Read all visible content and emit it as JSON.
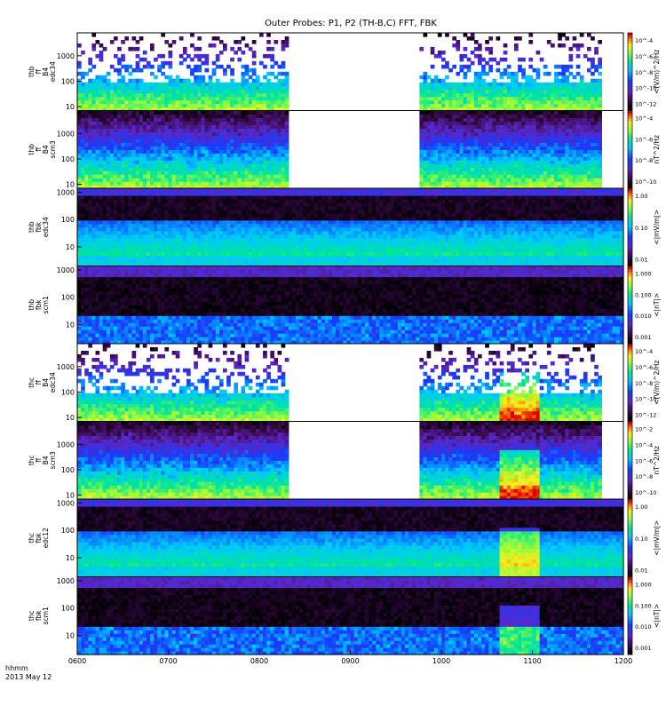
{
  "chart_data": {
    "type": "heatmap",
    "title": "Outer Probes: P1, P2 (TH-B,C) FFT, FBK",
    "footer": {
      "label_line1": "hhmm",
      "label_line2": "2013 May 12"
    },
    "x_axis": {
      "range": [
        "0600",
        "1200"
      ],
      "ticks": [
        "0600",
        "0700",
        "0800",
        "0900",
        "1000",
        "1100",
        "1200"
      ]
    },
    "data_gaps": [
      [
        "0820",
        "0945"
      ],
      [
        "1145",
        "1200"
      ]
    ],
    "panels": [
      {
        "id": "thb-ff-e",
        "ylabel": [
          "thb",
          "ff",
          "B4",
          "edc34"
        ],
        "yscale": "log",
        "yticks": [
          "10",
          "100",
          "1000"
        ],
        "ylim": [
          7,
          8000
        ],
        "colorbar": {
          "label": "<(V/m)^2/Hz",
          "ticks": [
            "10^-4",
            "10^-6",
            "10^-8",
            "10^-10",
            "10^-12"
          ],
          "range": [
            "10^-13",
            "10^-4"
          ]
        },
        "sparse": true,
        "gap": true
      },
      {
        "id": "thb-ff-s",
        "ylabel": [
          "thb",
          "ff",
          "B4",
          "scm3"
        ],
        "yscale": "log",
        "yticks": [
          "10",
          "100",
          "1000"
        ],
        "ylim": [
          7,
          8000
        ],
        "colorbar": {
          "label": "nT^2/Hz",
          "ticks": [
            "10^-4",
            "10^-6",
            "10^-8",
            "10^-10"
          ],
          "range": [
            "10^-10",
            "10^-3"
          ]
        },
        "sparse": false,
        "gap": true
      },
      {
        "id": "thb-fbk-e",
        "ylabel": [
          "thb",
          "fbk",
          "edc34"
        ],
        "yscale": "log",
        "yticks": [
          "10",
          "100",
          "1000"
        ],
        "ylim": [
          2,
          1400
        ],
        "colorbar": {
          "label": "<|mV/m|>",
          "ticks": [
            "1.00",
            "0.10",
            "0.01"
          ],
          "range": [
            "0.004",
            "2"
          ]
        },
        "sparse": false,
        "gap": false
      },
      {
        "id": "thb-fbk-s",
        "ylabel": [
          "thb",
          "fbk",
          "scm1"
        ],
        "yscale": "log",
        "yticks": [
          "10",
          "100",
          "1000"
        ],
        "ylim": [
          2,
          1400
        ],
        "colorbar": {
          "label": "<|nT|>",
          "ticks": [
            "1.000",
            "0.100",
            "0.010",
            "0.001"
          ],
          "range": [
            "0.0008",
            "2"
          ]
        },
        "sparse": false,
        "gap": false
      },
      {
        "id": "thc-ff-e",
        "ylabel": [
          "thc",
          "ff",
          "B4",
          "edc34"
        ],
        "yscale": "log",
        "yticks": [
          "10",
          "100",
          "1000"
        ],
        "ylim": [
          7,
          8000
        ],
        "colorbar": {
          "label": "<(V/m)^2/Hz",
          "ticks": [
            "10^-4",
            "10^-6",
            "10^-8",
            "10^-10",
            "10^-12"
          ],
          "range": [
            "10^-13",
            "10^-4"
          ]
        },
        "sparse": true,
        "gap": true
      },
      {
        "id": "thc-ff-s",
        "ylabel": [
          "thc",
          "ff",
          "B4",
          "scm3"
        ],
        "yscale": "log",
        "yticks": [
          "10",
          "100",
          "1000"
        ],
        "ylim": [
          7,
          8000
        ],
        "colorbar": {
          "label": "nT^2/Hz",
          "ticks": [
            "10^-2",
            "10^-4",
            "10^-6",
            "10^-8",
            "10^-10"
          ],
          "range": [
            "10^-11",
            "10^-1"
          ]
        },
        "sparse": false,
        "gap": true
      },
      {
        "id": "thc-fbk-e",
        "ylabel": [
          "thc",
          "fbk",
          "edc12"
        ],
        "yscale": "log",
        "yticks": [
          "10",
          "100",
          "1000"
        ],
        "ylim": [
          2,
          1400
        ],
        "colorbar": {
          "label": "<|mV/m|>",
          "ticks": [
            "1.00",
            "0.10",
            "0.01"
          ],
          "range": [
            "0.004",
            "2"
          ]
        },
        "sparse": false,
        "gap": false
      },
      {
        "id": "thc-fbk-s",
        "ylabel": [
          "thc",
          "fbk",
          "scm1"
        ],
        "yscale": "log",
        "yticks": [
          "10",
          "100",
          "1000"
        ],
        "ylim": [
          2,
          1400
        ],
        "colorbar": {
          "label": "<|nT|>",
          "ticks": [
            "1.000",
            "0.100",
            "0.010",
            "0.001"
          ],
          "range": [
            "0.0008",
            "2"
          ]
        },
        "sparse": false,
        "gap": false
      }
    ],
    "grid": false
  }
}
